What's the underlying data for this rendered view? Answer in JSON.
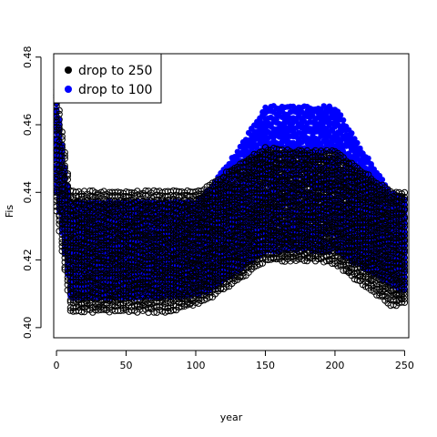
{
  "chart_data": {
    "type": "scatter",
    "title": "",
    "xlabel": "year",
    "ylabel": "Fis",
    "xlim": [
      -2,
      253
    ],
    "ylim": [
      0.397,
      0.481
    ],
    "x_ticks": [
      0,
      50,
      100,
      150,
      200,
      250
    ],
    "x_tick_labels": [
      "0",
      "50",
      "100",
      "150",
      "200",
      "250"
    ],
    "y_ticks": [
      0.4,
      0.42,
      0.44,
      0.46,
      0.48
    ],
    "y_tick_labels": [
      "0.40",
      "0.42",
      "0.44",
      "0.46",
      "0.48"
    ],
    "grid": false,
    "legend_position": "top-left",
    "series": [
      {
        "name": "drop to 100",
        "color": "#0000ff",
        "marker": "filled-circle",
        "x": [
          0,
          5,
          10,
          20,
          40,
          60,
          80,
          100,
          110,
          130,
          150,
          170,
          190,
          200,
          220,
          240,
          250
        ],
        "upper": [
          0.47,
          0.45,
          0.437,
          0.437,
          0.437,
          0.437,
          0.437,
          0.437,
          0.441,
          0.452,
          0.465,
          0.465,
          0.465,
          0.465,
          0.452,
          0.44,
          0.438
        ],
        "lower": [
          0.44,
          0.425,
          0.409,
          0.409,
          0.409,
          0.409,
          0.409,
          0.41,
          0.411,
          0.417,
          0.423,
          0.423,
          0.423,
          0.423,
          0.418,
          0.413,
          0.411
        ]
      },
      {
        "name": "drop to 250",
        "color": "#000000",
        "marker": "open-circle",
        "x": [
          0,
          5,
          10,
          20,
          40,
          60,
          80,
          100,
          110,
          130,
          150,
          170,
          190,
          200,
          220,
          240,
          250
        ],
        "upper": [
          0.47,
          0.455,
          0.44,
          0.44,
          0.44,
          0.44,
          0.44,
          0.44,
          0.442,
          0.448,
          0.453,
          0.452,
          0.452,
          0.452,
          0.446,
          0.44,
          0.44
        ],
        "lower": [
          0.435,
          0.42,
          0.405,
          0.405,
          0.405,
          0.405,
          0.405,
          0.407,
          0.409,
          0.414,
          0.42,
          0.42,
          0.42,
          0.419,
          0.413,
          0.407,
          0.407
        ]
      }
    ],
    "legend": [
      {
        "label": "drop to 250",
        "color": "#000000"
      },
      {
        "label": "drop to 100",
        "color": "#0000ff"
      }
    ]
  }
}
